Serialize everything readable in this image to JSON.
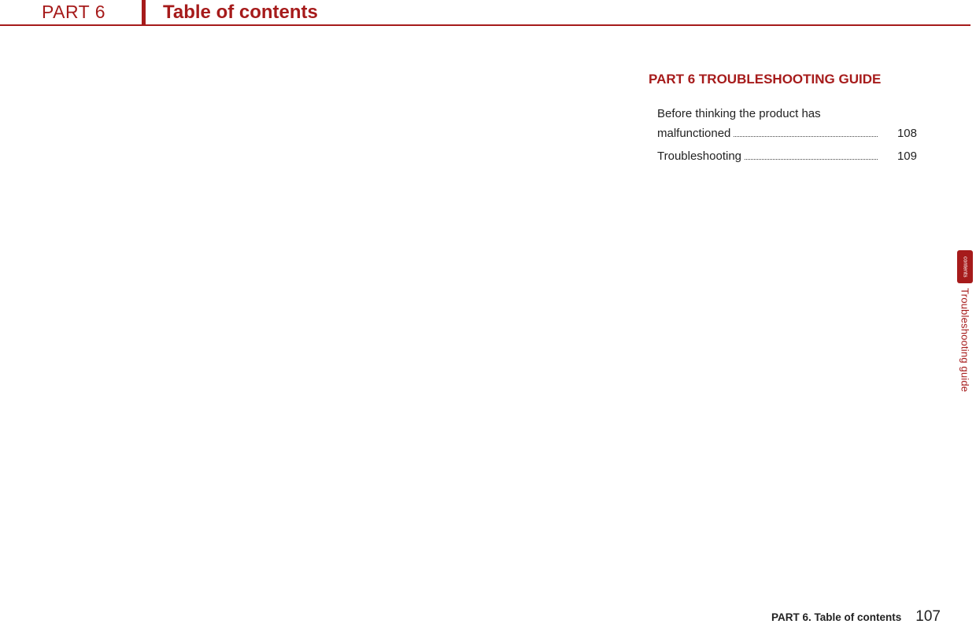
{
  "header": {
    "part": "PART 6",
    "title": "Table of contents"
  },
  "section": {
    "heading": "PART 6  TROUBLESHOOTING GUIDE"
  },
  "toc": {
    "items": [
      {
        "line1": "Before thinking the product has",
        "line2": "malfunctioned",
        "page": "108"
      },
      {
        "line1": "Troubleshooting ",
        "page": "109"
      }
    ]
  },
  "side_tab": {
    "box_text": "contents",
    "label": "Troubleshooting guide"
  },
  "footer": {
    "title": "PART 6. Table of contents",
    "page": "107"
  },
  "colors": {
    "accent": "#a61b1b",
    "text": "#222222",
    "bg": "#ffffff"
  }
}
